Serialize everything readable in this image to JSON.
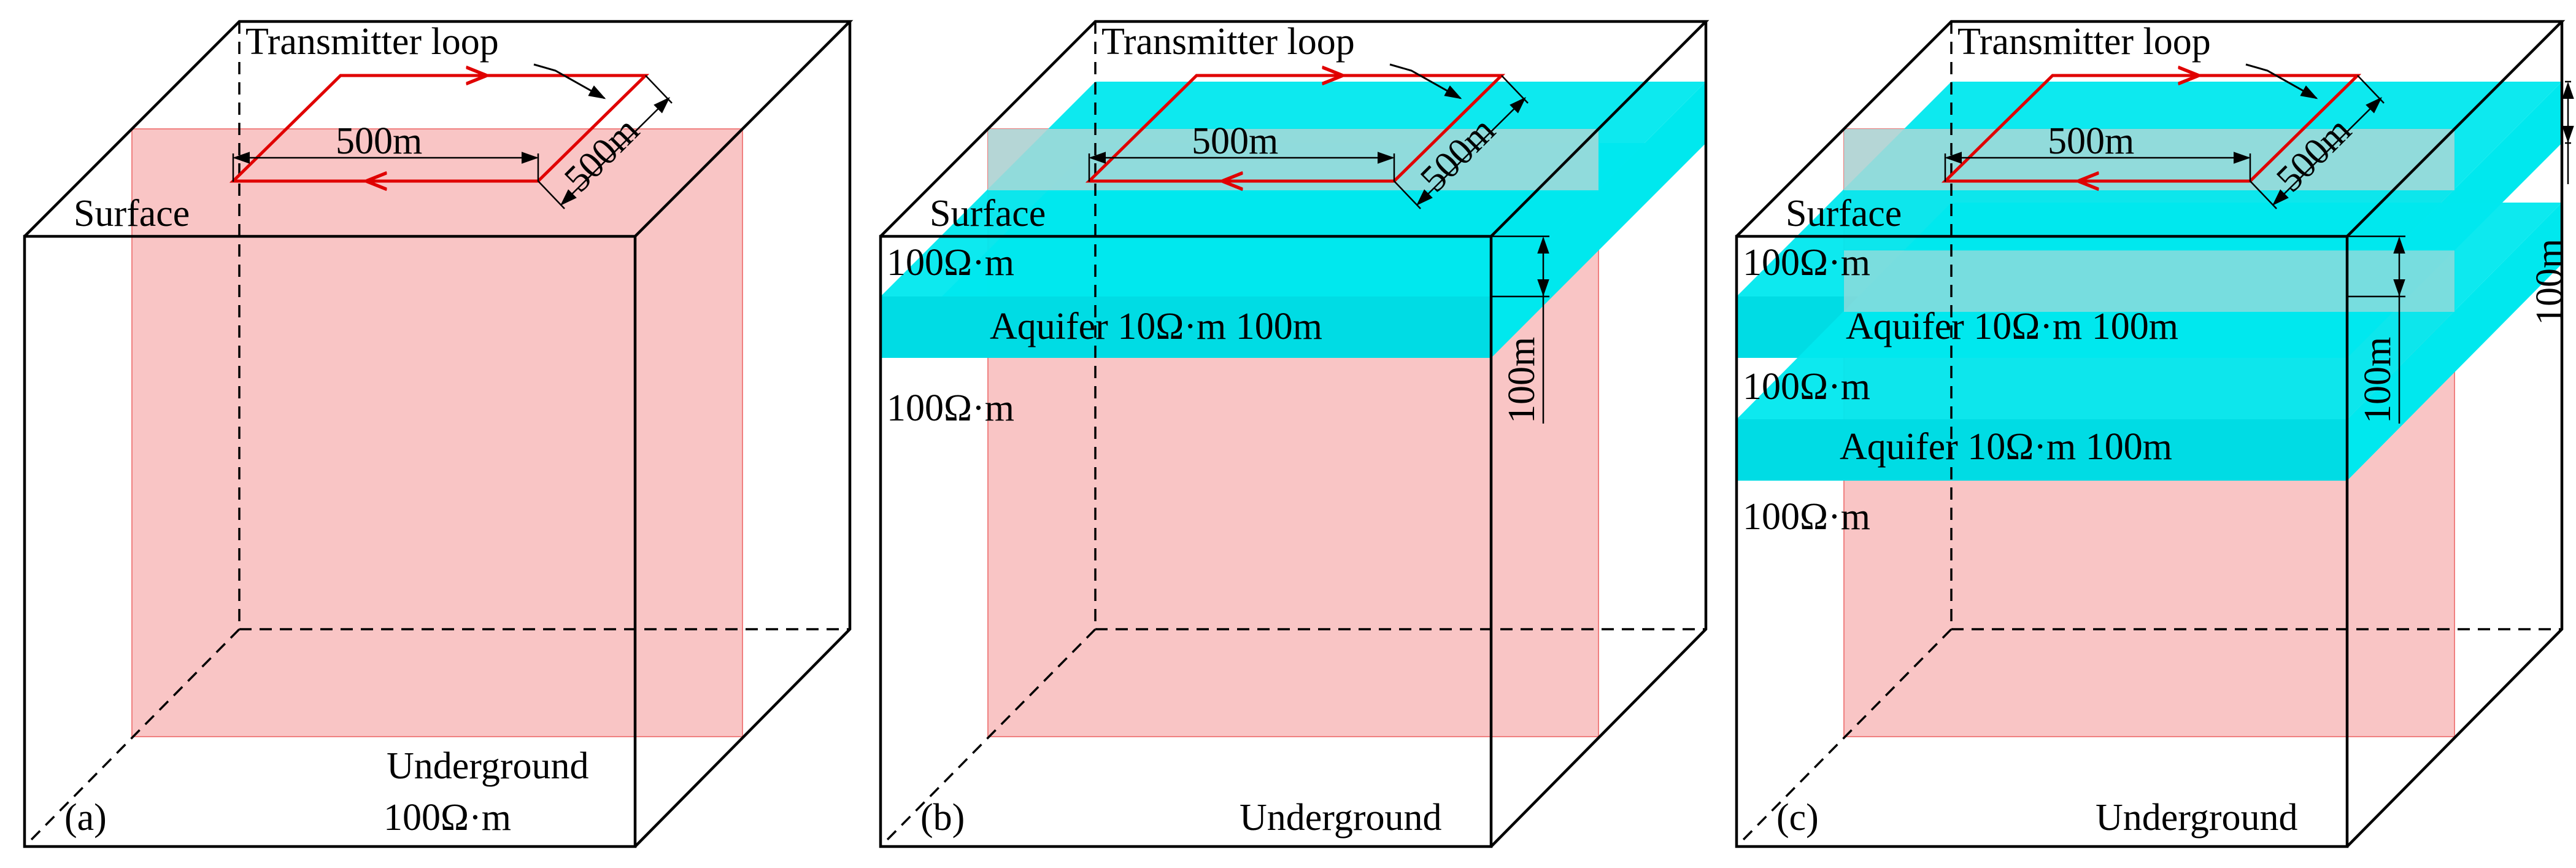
{
  "colors": {
    "outline": "#000000",
    "loop": "#e00000",
    "section": "#f9c5c5",
    "aquifer": "#00e8ee"
  },
  "panels": [
    {
      "letter": "(a)",
      "transmitter": "Transmitter loop",
      "loop_width": "500m",
      "loop_depth": "500m",
      "surface": "Surface",
      "underground": "Underground",
      "bottom_resistivity": "100Ω·m"
    },
    {
      "letter": "(b)",
      "transmitter": "Transmitter loop",
      "loop_width": "500m",
      "loop_depth": "500m",
      "surface": "Surface",
      "underground": "Underground",
      "top_resistivity": "100Ω·m",
      "aquifer": "Aquifer 10Ω·m  100m",
      "lower_resistivity": "100Ω·m",
      "thickness": "100m"
    },
    {
      "letter": "(c)",
      "transmitter": "Transmitter loop",
      "loop_width": "500m",
      "loop_depth": "500m",
      "surface": "Surface",
      "underground": "Underground",
      "top_resistivity": "100Ω·m",
      "aquifer1": "Aquifer 10Ω·m  100m",
      "mid_resistivity": "100Ω·m",
      "aquifer2": "Aquifer 10Ω·m  100m",
      "lower_resistivity": "100Ω·m",
      "thickness_front": "100m",
      "thickness_back": "100m"
    }
  ]
}
